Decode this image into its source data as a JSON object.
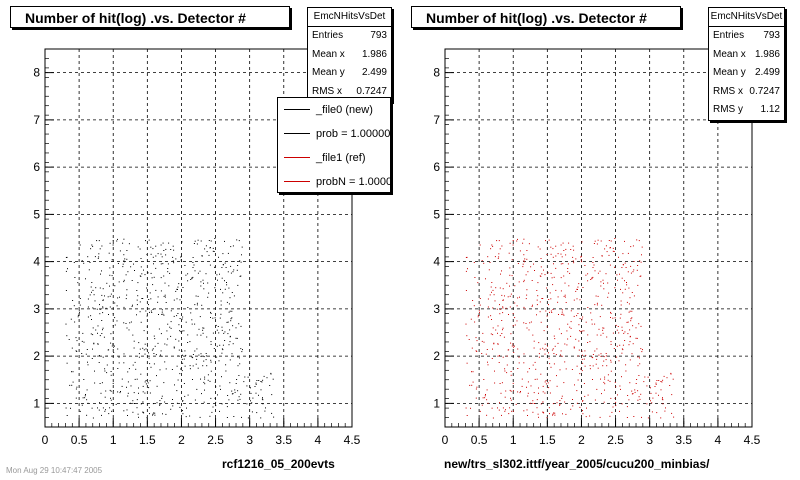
{
  "panels": [
    {
      "title": "Number of hit(log) .vs. Detector #",
      "stats": {
        "name": "EmcNHitsVsDet",
        "rows": [
          {
            "label": "Entries",
            "value": "793"
          },
          {
            "label": "Mean x",
            "value": "1.986"
          },
          {
            "label": "Mean y",
            "value": "2.499"
          },
          {
            "label": "RMS x",
            "value": "0.7247"
          }
        ]
      },
      "legend": [
        {
          "label": "_file0 (new)",
          "color": "#000000"
        },
        {
          "label": "prob = 1.000000",
          "color": "#000000"
        },
        {
          "label": "_file1 (ref)",
          "color": "#cc0000"
        },
        {
          "label": "probN = 1.000000",
          "color": "#cc0000"
        }
      ],
      "xtitle": "rcf1216_05_200evts"
    },
    {
      "title": "Number of hit(log) .vs. Detector #",
      "stats": {
        "name": "EmcNHitsVsDet",
        "rows": [
          {
            "label": "Entries",
            "value": "793"
          },
          {
            "label": "Mean x",
            "value": "1.986"
          },
          {
            "label": "Mean y",
            "value": "2.499"
          },
          {
            "label": "RMS x",
            "value": "0.7247"
          },
          {
            "label": "RMS y",
            "value": "1.12"
          }
        ]
      },
      "xtitle": "new/trs_sl302.ittf/year_2005/cucu200_minbias/"
    }
  ],
  "footnote": "Mon Aug 29 10:47:47 2005",
  "chart_data": [
    {
      "type": "scatter",
      "title": "Number of hit(log) .vs. Detector #",
      "xlabel": "rcf1216_05_200evts",
      "ylabel": "",
      "xlim": [
        0,
        4.5
      ],
      "ylim": [
        0.5,
        8.5
      ],
      "xticks": [
        "0",
        "0.5",
        "1",
        "1.5",
        "2",
        "2.5",
        "3",
        "3.5",
        "4",
        "4.5"
      ],
      "yticks": [
        "1",
        "2",
        "3",
        "4",
        "5",
        "6",
        "7",
        "8"
      ],
      "grid": true,
      "legend_position": "top-right",
      "marker_color": "#000000",
      "entries": 793,
      "distribution": {
        "x_range": [
          0.3,
          3.35
        ],
        "y_range": [
          0.7,
          4.5
        ],
        "x_tail_start": 2.9,
        "y_tail_max": 1.7
      }
    },
    {
      "type": "scatter",
      "title": "Number of hit(log) .vs. Detector #",
      "xlabel": "new/trs_sl302.ittf/year_2005/cucu200_minbias/",
      "ylabel": "",
      "xlim": [
        0,
        4.5
      ],
      "ylim": [
        0.5,
        8.5
      ],
      "xticks": [
        "0",
        "0.5",
        "1",
        "1.5",
        "2",
        "2.5",
        "3",
        "3.5",
        "4",
        "4.5"
      ],
      "yticks": [
        "1",
        "2",
        "3",
        "4",
        "5",
        "6",
        "7",
        "8"
      ],
      "grid": true,
      "marker_color": "#cc0000",
      "entries": 793,
      "distribution": {
        "x_range": [
          0.3,
          3.35
        ],
        "y_range": [
          0.7,
          4.5
        ],
        "x_tail_start": 2.9,
        "y_tail_max": 1.7
      }
    }
  ]
}
